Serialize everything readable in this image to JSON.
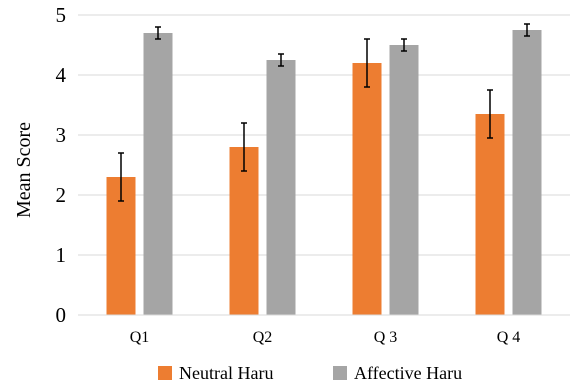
{
  "chart_data": {
    "type": "bar",
    "title": "",
    "xlabel": "",
    "ylabel": "Mean Score",
    "ylim": [
      0,
      5
    ],
    "yticks": [
      "0",
      "1",
      "2",
      "3",
      "4",
      "5"
    ],
    "grid": true,
    "legend_position": "bottom",
    "categories": [
      "Q1",
      "Q2",
      "Q 3",
      "Q 4"
    ],
    "series": [
      {
        "name": "Neutral Haru",
        "color": "#ED7D31",
        "values": [
          2.3,
          2.8,
          4.2,
          3.35
        ],
        "errors": [
          0.4,
          0.4,
          0.4,
          0.4
        ]
      },
      {
        "name": "Affective Haru",
        "color": "#A5A5A5",
        "values": [
          4.7,
          4.25,
          4.5,
          4.75
        ],
        "errors": [
          0.1,
          0.1,
          0.1,
          0.1
        ]
      }
    ]
  }
}
